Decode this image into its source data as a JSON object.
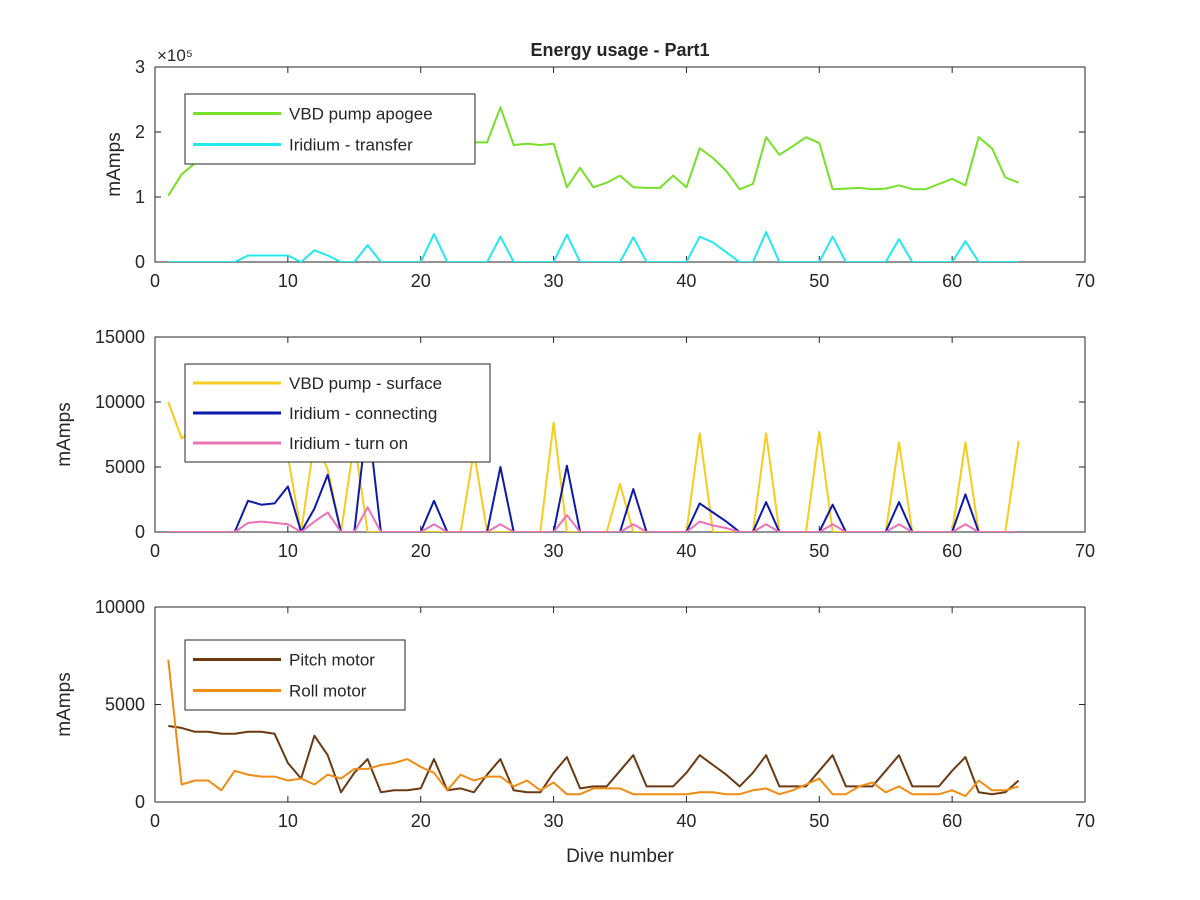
{
  "figure_title": "Energy usage - Part1",
  "colors": {
    "vbd_apogee": "#77e02a",
    "iridium_transfer": "#22e8f0",
    "vbd_surface": "#f7cc1e",
    "iridium_connecting": "#0d1aa8",
    "iridium_turn_on": "#eb73b8",
    "pitch_motor": "#6b3a12",
    "roll_motor": "#f08c14"
  },
  "chart_data": [
    {
      "type": "line",
      "title": "Energy usage - Part1",
      "xlabel": "",
      "ylabel": "mAmps",
      "xlim": [
        0,
        70
      ],
      "ylim": [
        0,
        300000
      ],
      "xticks": [
        0,
        10,
        20,
        30,
        40,
        50,
        60,
        70
      ],
      "yticks": [
        0,
        100000,
        200000,
        300000
      ],
      "ytick_labels": [
        "0",
        "1",
        "2",
        "3"
      ],
      "y_exponent": "×10⁵",
      "grid": false,
      "legend_position": "top-left",
      "series": [
        {
          "name": "VBD pump apogee",
          "color_key": "vbd_apogee",
          "x": [
            1,
            2,
            3,
            4,
            5,
            6,
            7,
            8,
            9,
            10,
            11,
            12,
            13,
            14,
            15,
            16,
            17,
            18,
            19,
            20,
            21,
            22,
            23,
            24,
            25,
            26,
            27,
            28,
            29,
            30,
            31,
            32,
            33,
            34,
            35,
            36,
            37,
            38,
            39,
            40,
            41,
            42,
            43,
            44,
            45,
            46,
            47,
            48,
            49,
            50,
            51,
            52,
            53,
            54,
            55,
            56,
            57,
            58,
            59,
            60,
            61,
            62,
            63,
            64,
            65
          ],
          "y": [
            102000,
            135000,
            152000,
            165000,
            170000,
            172000,
            173000,
            174000,
            175000,
            176000,
            177000,
            178000,
            179000,
            179000,
            180000,
            180000,
            181000,
            181000,
            182000,
            182000,
            183000,
            183000,
            184000,
            184000,
            184000,
            238000,
            180000,
            182000,
            180000,
            182000,
            115000,
            145000,
            115000,
            122000,
            133000,
            115000,
            114000,
            114000,
            133000,
            115000,
            175000,
            160000,
            140000,
            112000,
            120000,
            192000,
            165000,
            178000,
            192000,
            183000,
            112000,
            113000,
            114000,
            112000,
            113000,
            118000,
            112000,
            112000,
            120000,
            128000,
            118000,
            192000,
            175000,
            130000,
            122000
          ]
        },
        {
          "name": "Iridium - transfer",
          "color_key": "iridium_transfer",
          "x": [
            1,
            2,
            3,
            4,
            5,
            6,
            7,
            8,
            9,
            10,
            11,
            12,
            13,
            14,
            15,
            16,
            17,
            18,
            19,
            20,
            21,
            22,
            23,
            24,
            25,
            26,
            27,
            28,
            29,
            30,
            31,
            32,
            33,
            34,
            35,
            36,
            37,
            38,
            39,
            40,
            41,
            42,
            43,
            44,
            45,
            46,
            47,
            48,
            49,
            50,
            51,
            52,
            53,
            54,
            55,
            56,
            57,
            58,
            59,
            60,
            61,
            62,
            63,
            64,
            65
          ],
          "y": [
            0,
            0,
            0,
            0,
            0,
            0,
            10000,
            10000,
            10000,
            10000,
            0,
            18000,
            10000,
            0,
            0,
            26000,
            0,
            0,
            0,
            0,
            43000,
            0,
            0,
            0,
            0,
            39000,
            0,
            0,
            0,
            0,
            42000,
            0,
            0,
            0,
            0,
            38000,
            0,
            0,
            0,
            0,
            39000,
            30000,
            15000,
            0,
            0,
            46000,
            0,
            0,
            0,
            0,
            39000,
            0,
            0,
            0,
            0,
            35000,
            0,
            0,
            0,
            0,
            32000,
            0,
            0,
            0,
            0
          ]
        }
      ]
    },
    {
      "type": "line",
      "title": "",
      "xlabel": "",
      "ylabel": "mAmps",
      "xlim": [
        0,
        70
      ],
      "ylim": [
        0,
        15000
      ],
      "xticks": [
        0,
        10,
        20,
        30,
        40,
        50,
        60,
        70
      ],
      "yticks": [
        0,
        5000,
        10000,
        15000
      ],
      "ytick_labels": [
        "0",
        "5000",
        "10000",
        "15000"
      ],
      "grid": false,
      "legend_position": "top-left",
      "series": [
        {
          "name": "VBD pump - surface",
          "color_key": "vbd_surface",
          "x": [
            1,
            2,
            3,
            4,
            5,
            6,
            7,
            8,
            9,
            10,
            11,
            12,
            13,
            14,
            15,
            16,
            17,
            18,
            19,
            20,
            21,
            22,
            23,
            24,
            25,
            26,
            27,
            28,
            29,
            30,
            31,
            32,
            33,
            34,
            35,
            36,
            37,
            38,
            39,
            40,
            41,
            42,
            43,
            44,
            45,
            46,
            47,
            48,
            49,
            50,
            51,
            52,
            53,
            54,
            55,
            56,
            57,
            58,
            59,
            60,
            61,
            62,
            63,
            64,
            65
          ],
          "y": [
            10000,
            7200,
            8000,
            8000,
            8000,
            8000,
            8000,
            8000,
            8000,
            5800,
            0,
            7000,
            4800,
            0,
            7000,
            0,
            0,
            0,
            0,
            0,
            0,
            0,
            0,
            6200,
            0,
            0,
            0,
            0,
            0,
            8400,
            0,
            0,
            0,
            0,
            3700,
            0,
            0,
            0,
            0,
            0,
            7600,
            0,
            0,
            0,
            0,
            7600,
            0,
            0,
            0,
            7700,
            0,
            0,
            0,
            0,
            0,
            6900,
            0,
            0,
            0,
            0,
            6900,
            0,
            0,
            0,
            7000
          ]
        },
        {
          "name": "Iridium - connecting",
          "color_key": "iridium_connecting",
          "x": [
            1,
            2,
            3,
            4,
            5,
            6,
            7,
            8,
            9,
            10,
            11,
            12,
            13,
            14,
            15,
            16,
            17,
            18,
            19,
            20,
            21,
            22,
            23,
            24,
            25,
            26,
            27,
            28,
            29,
            30,
            31,
            32,
            33,
            34,
            35,
            36,
            37,
            38,
            39,
            40,
            41,
            42,
            43,
            44,
            45,
            46,
            47,
            48,
            49,
            50,
            51,
            52,
            53,
            54,
            55,
            56,
            57,
            58,
            59,
            60,
            61,
            62,
            63,
            64,
            65
          ],
          "y": [
            0,
            0,
            0,
            0,
            0,
            0,
            2400,
            2100,
            2200,
            3500,
            0,
            1800,
            4400,
            0,
            0,
            9000,
            0,
            0,
            0,
            0,
            2400,
            0,
            0,
            0,
            0,
            5000,
            0,
            0,
            0,
            0,
            5100,
            0,
            0,
            0,
            0,
            3300,
            0,
            0,
            0,
            0,
            2200,
            1500,
            800,
            0,
            0,
            2300,
            0,
            0,
            0,
            0,
            2100,
            0,
            0,
            0,
            0,
            2300,
            0,
            0,
            0,
            0,
            2900,
            0,
            0,
            0,
            0
          ]
        },
        {
          "name": "Iridium - turn on",
          "color_key": "iridium_turn_on",
          "x": [
            1,
            2,
            3,
            4,
            5,
            6,
            7,
            8,
            9,
            10,
            11,
            12,
            13,
            14,
            15,
            16,
            17,
            18,
            19,
            20,
            21,
            22,
            23,
            24,
            25,
            26,
            27,
            28,
            29,
            30,
            31,
            32,
            33,
            34,
            35,
            36,
            37,
            38,
            39,
            40,
            41,
            42,
            43,
            44,
            45,
            46,
            47,
            48,
            49,
            50,
            51,
            52,
            53,
            54,
            55,
            56,
            57,
            58,
            59,
            60,
            61,
            62,
            63,
            64,
            65
          ],
          "y": [
            0,
            0,
            0,
            0,
            0,
            0,
            700,
            800,
            700,
            600,
            0,
            800,
            1500,
            0,
            0,
            1900,
            0,
            0,
            0,
            0,
            600,
            0,
            0,
            0,
            0,
            600,
            0,
            0,
            0,
            0,
            1300,
            0,
            0,
            0,
            0,
            600,
            0,
            0,
            0,
            0,
            800,
            500,
            300,
            0,
            0,
            600,
            0,
            0,
            0,
            0,
            600,
            0,
            0,
            0,
            0,
            600,
            0,
            0,
            0,
            0,
            600,
            0,
            0,
            0,
            0
          ]
        }
      ]
    },
    {
      "type": "line",
      "title": "",
      "xlabel": "Dive number",
      "ylabel": "mAmps",
      "xlim": [
        0,
        70
      ],
      "ylim": [
        0,
        10000
      ],
      "xticks": [
        0,
        10,
        20,
        30,
        40,
        50,
        60,
        70
      ],
      "yticks": [
        0,
        5000,
        10000
      ],
      "ytick_labels": [
        "0",
        "5000",
        "10000"
      ],
      "grid": false,
      "legend_position": "top-left",
      "series": [
        {
          "name": "Pitch motor",
          "color_key": "pitch_motor",
          "x": [
            1,
            2,
            3,
            4,
            5,
            6,
            7,
            8,
            9,
            10,
            11,
            12,
            13,
            14,
            15,
            16,
            17,
            18,
            19,
            20,
            21,
            22,
            23,
            24,
            25,
            26,
            27,
            28,
            29,
            30,
            31,
            32,
            33,
            34,
            35,
            36,
            37,
            38,
            39,
            40,
            41,
            42,
            43,
            44,
            45,
            46,
            47,
            48,
            49,
            50,
            51,
            52,
            53,
            54,
            55,
            56,
            57,
            58,
            59,
            60,
            61,
            62,
            63,
            64,
            65
          ],
          "y": [
            3900,
            3800,
            3600,
            3600,
            3500,
            3500,
            3600,
            3600,
            3500,
            2000,
            1200,
            3400,
            2400,
            500,
            1500,
            2200,
            500,
            600,
            600,
            700,
            2200,
            600,
            700,
            500,
            1400,
            2200,
            600,
            500,
            500,
            1500,
            2300,
            700,
            800,
            800,
            1600,
            2400,
            800,
            800,
            800,
            1500,
            2400,
            1900,
            1400,
            800,
            1500,
            2400,
            800,
            800,
            800,
            1600,
            2400,
            800,
            800,
            800,
            1600,
            2400,
            800,
            800,
            800,
            1600,
            2300,
            500,
            400,
            500,
            1100
          ]
        },
        {
          "name": "Roll motor",
          "color_key": "roll_motor",
          "x": [
            1,
            2,
            3,
            4,
            5,
            6,
            7,
            8,
            9,
            10,
            11,
            12,
            13,
            14,
            15,
            16,
            17,
            18,
            19,
            20,
            21,
            22,
            23,
            24,
            25,
            26,
            27,
            28,
            29,
            30,
            31,
            32,
            33,
            34,
            35,
            36,
            37,
            38,
            39,
            40,
            41,
            42,
            43,
            44,
            45,
            46,
            47,
            48,
            49,
            50,
            51,
            52,
            53,
            54,
            55,
            56,
            57,
            58,
            59,
            60,
            61,
            62,
            63,
            64,
            65
          ],
          "y": [
            7300,
            900,
            1100,
            1100,
            600,
            1600,
            1400,
            1300,
            1300,
            1100,
            1200,
            900,
            1400,
            1200,
            1700,
            1700,
            1900,
            2000,
            2200,
            1800,
            1500,
            600,
            1400,
            1100,
            1300,
            1300,
            800,
            1100,
            600,
            1000,
            400,
            400,
            700,
            700,
            700,
            400,
            400,
            400,
            400,
            400,
            500,
            500,
            400,
            400,
            600,
            700,
            400,
            600,
            900,
            1200,
            400,
            400,
            800,
            1000,
            500,
            800,
            400,
            400,
            400,
            600,
            300,
            1100,
            600,
            600,
            800
          ]
        }
      ]
    }
  ]
}
